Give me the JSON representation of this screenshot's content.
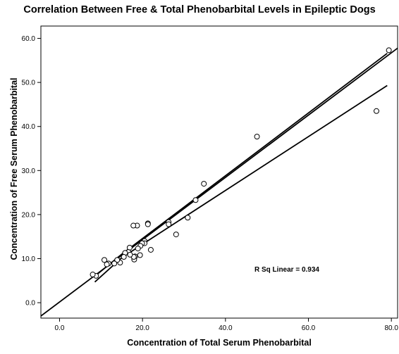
{
  "chart_data": {
    "type": "scatter",
    "title": "Correlation Between Free & Total Phenobarbital Levels in Epileptic Dogs",
    "xlabel": "Concentration of Total Serum Phenobarbital",
    "ylabel": "Concentration of Free Serum Phenobarbital",
    "xlim": [
      -4.5,
      81.5
    ],
    "ylim": [
      -3.5,
      62.8
    ],
    "xticks": [
      "0.0",
      "20.0",
      "40.0",
      "60.0",
      "80.0"
    ],
    "yticks": [
      "0.0",
      "10.0",
      "20.0",
      "30.0",
      "40.0",
      "50.0",
      "60.0"
    ],
    "annotation": "R Sq Linear = 0.934",
    "grid": false,
    "points": [
      {
        "x": 79.4,
        "y": 57.3
      },
      {
        "x": 76.4,
        "y": 43.5
      },
      {
        "x": 47.6,
        "y": 37.7
      },
      {
        "x": 34.8,
        "y": 27.0
      },
      {
        "x": 32.8,
        "y": 23.3
      },
      {
        "x": 30.9,
        "y": 19.3
      },
      {
        "x": 28.1,
        "y": 15.5
      },
      {
        "x": 26.3,
        "y": 18.3
      },
      {
        "x": 26.3,
        "y": 17.8
      },
      {
        "x": 21.3,
        "y": 18.0
      },
      {
        "x": 21.3,
        "y": 17.8
      },
      {
        "x": 22.0,
        "y": 12.0
      },
      {
        "x": 20.5,
        "y": 14.0
      },
      {
        "x": 20.5,
        "y": 13.5
      },
      {
        "x": 19.9,
        "y": 13.5
      },
      {
        "x": 19.5,
        "y": 12.9
      },
      {
        "x": 19.4,
        "y": 10.8
      },
      {
        "x": 18.7,
        "y": 17.5
      },
      {
        "x": 17.8,
        "y": 17.5
      },
      {
        "x": 18.9,
        "y": 12.3
      },
      {
        "x": 18.2,
        "y": 10.5
      },
      {
        "x": 18.0,
        "y": 9.8
      },
      {
        "x": 17.9,
        "y": 10.4
      },
      {
        "x": 16.9,
        "y": 12.5
      },
      {
        "x": 16.6,
        "y": 11.5
      },
      {
        "x": 15.8,
        "y": 11.3
      },
      {
        "x": 17.0,
        "y": 10.9
      },
      {
        "x": 15.5,
        "y": 10.4
      },
      {
        "x": 14.6,
        "y": 9.1
      },
      {
        "x": 13.9,
        "y": 9.7
      },
      {
        "x": 13.2,
        "y": 8.9
      },
      {
        "x": 11.8,
        "y": 8.9
      },
      {
        "x": 11.4,
        "y": 8.7
      },
      {
        "x": 10.8,
        "y": 9.7
      },
      {
        "x": 8.8,
        "y": 6.1
      },
      {
        "x": 8.0,
        "y": 6.4
      }
    ],
    "fit_line": {
      "slope": 0.707,
      "intercept": 0.16,
      "x_range": [
        -4.5,
        81.5
      ]
    },
    "ci_upper": [
      {
        "x": 8.5,
        "y": 6.0
      },
      {
        "x": 15.0,
        "y": 11.0
      },
      {
        "x": 79.0,
        "y": 56.6
      }
    ],
    "ci_lower": [
      {
        "x": 8.5,
        "y": 4.7
      },
      {
        "x": 15.0,
        "y": 10.2
      },
      {
        "x": 79.0,
        "y": 49.3
      }
    ]
  }
}
